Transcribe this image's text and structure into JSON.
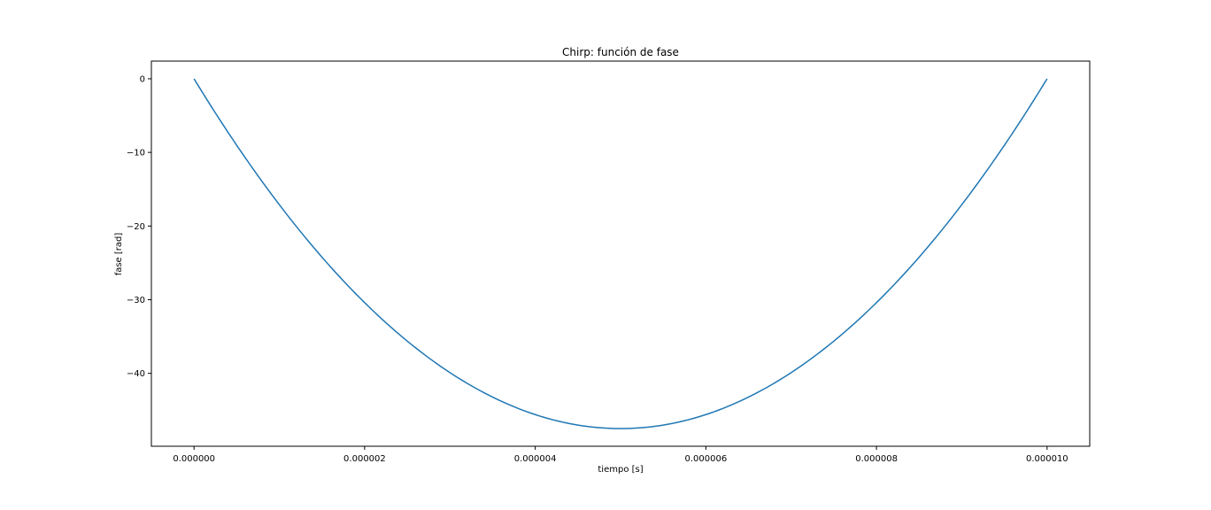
{
  "chart_data": {
    "type": "line",
    "title": "Chirp: función de fase",
    "xlabel": "tiempo [s]",
    "ylabel": "fase [rad]",
    "xlim": [
      -5e-07,
      1.05e-05
    ],
    "ylim": [
      -49.9,
      2.4
    ],
    "grid": false,
    "line_color": "#1f77b4",
    "x_ticks": [
      {
        "value": 0.0,
        "label": "0.000000"
      },
      {
        "value": 2e-06,
        "label": "0.000002"
      },
      {
        "value": 4e-06,
        "label": "0.000004"
      },
      {
        "value": 6e-06,
        "label": "0.000006"
      },
      {
        "value": 8e-06,
        "label": "0.000008"
      },
      {
        "value": 1e-05,
        "label": "0.000010"
      }
    ],
    "y_ticks": [
      {
        "value": 0,
        "label": "0"
      },
      {
        "value": -10,
        "label": "−10"
      },
      {
        "value": -20,
        "label": "−20"
      },
      {
        "value": -30,
        "label": "−30"
      },
      {
        "value": -40,
        "label": "−40"
      }
    ],
    "series": [
      {
        "x": [
          0.0,
          1e-06,
          2e-06,
          3e-06,
          4e-06,
          5e-06,
          6e-06,
          7e-06,
          8e-06,
          9e-06,
          1e-05
        ],
        "y": [
          0.0,
          -17.1,
          -30.4,
          -39.9,
          -45.6,
          -47.5,
          -45.6,
          -39.9,
          -30.4,
          -17.1,
          0.0
        ]
      }
    ]
  }
}
